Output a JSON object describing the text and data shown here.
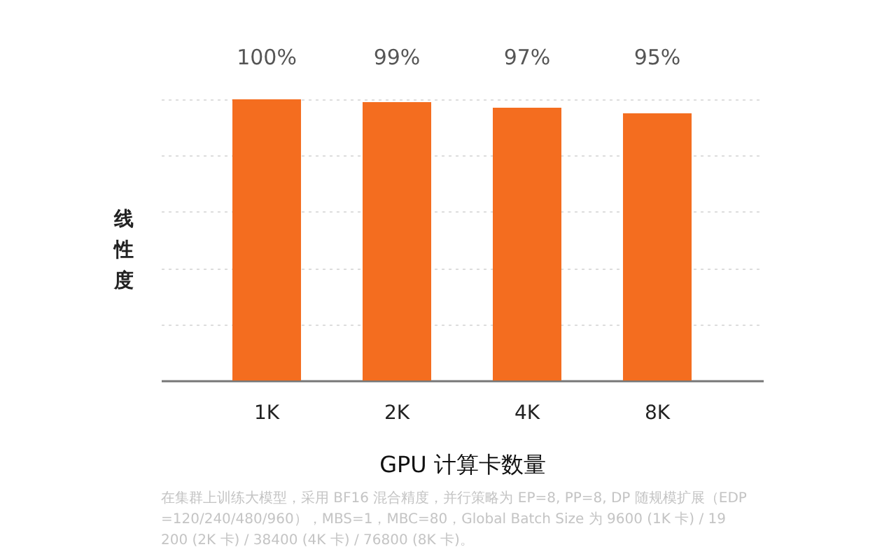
{
  "chart_data": {
    "type": "bar",
    "categories": [
      "1K",
      "2K",
      "4K",
      "8K"
    ],
    "values": [
      100,
      99,
      97,
      95
    ],
    "color": "#f46d1f",
    "value_labels": [
      "100%",
      "99%",
      "97%",
      "95%"
    ],
    "xlabel": "GPU 计算卡数量",
    "ylabel": "线性度",
    "ylim": [
      0,
      100
    ],
    "yticks": [
      {
        "value": 20,
        "label": null
      },
      {
        "value": 40,
        "label": null
      },
      {
        "value": 60,
        "label": null
      },
      {
        "value": 80,
        "label": null
      },
      {
        "value": 100,
        "label": null
      }
    ],
    "tick_labels": "x",
    "grid": "y",
    "annotations": [
      "在集群上训练大模型，采用 BF16 混合精度，并行策略为 EP=8, PP=8, DP 随规模扩展（EDP=120/240/480/960），MBS=1，MBC=80，Global Batch Size 为 9600 (1K 卡) / 19200 (2K 卡) / 38400 (4K 卡) / 76800 (8K 卡)。"
    ]
  }
}
